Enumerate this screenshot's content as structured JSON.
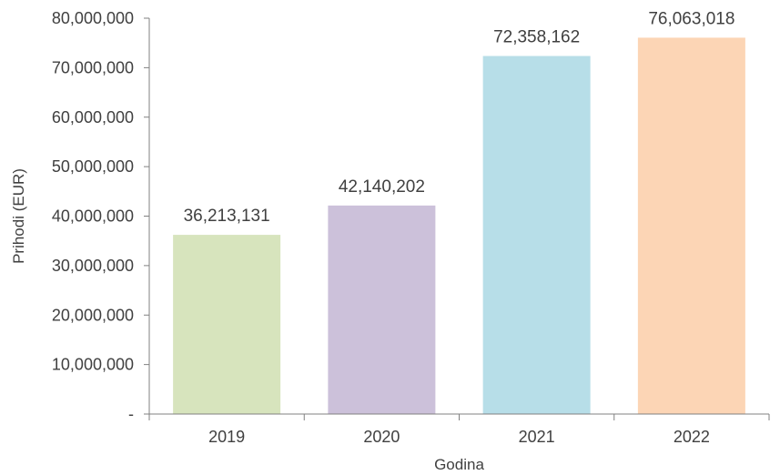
{
  "chart_data": {
    "type": "bar",
    "categories": [
      "2019",
      "2020",
      "2021",
      "2022"
    ],
    "values": [
      36213131,
      42140202,
      72358162,
      76063018
    ],
    "value_labels": [
      "36,213,131",
      "42,140,202",
      "72,358,162",
      "76,063,018"
    ],
    "bar_colors": [
      "#d7e4bd",
      "#ccc1da",
      "#b7dee8",
      "#fcd5b5"
    ],
    "title": "",
    "xlabel": "Godina",
    "ylabel": "Prihodi (EUR)",
    "ylim": [
      0,
      80000000
    ],
    "yticks": [
      0,
      10000000,
      20000000,
      30000000,
      40000000,
      50000000,
      60000000,
      70000000,
      80000000
    ],
    "ytick_labels": [
      "-",
      "10,000,000",
      "20,000,000",
      "30,000,000",
      "40,000,000",
      "50,000,000",
      "60,000,000",
      "70,000,000",
      "80,000,000"
    ],
    "grid": false,
    "legend": "none"
  }
}
